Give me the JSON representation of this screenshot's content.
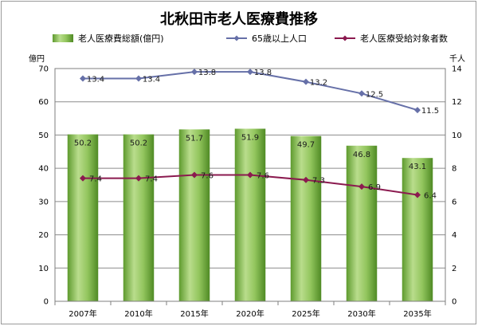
{
  "chart_data": {
    "type": "bar",
    "title": "北秋田市老人医療費推移",
    "categories": [
      "2007年",
      "2010年",
      "2015年",
      "2020年",
      "2025年",
      "2030年",
      "2035年"
    ],
    "y_left": {
      "unit": "億円",
      "min": 0,
      "max": 70,
      "step": 10
    },
    "y_right": {
      "unit": "千人",
      "min": 0,
      "max": 14,
      "step": 2
    },
    "grid": true,
    "legend_position": "top",
    "series": [
      {
        "name": "老人医療費総額(億円)",
        "kind": "bar",
        "axis": "left",
        "color": "#7ab648",
        "values": [
          50.2,
          50.2,
          51.7,
          51.9,
          49.7,
          46.8,
          43.1
        ]
      },
      {
        "name": "65歳以上人口",
        "kind": "line",
        "axis": "right",
        "color": "#6670a8",
        "marker": "diamond",
        "values": [
          13.4,
          13.4,
          13.8,
          13.8,
          13.2,
          12.5,
          11.5
        ]
      },
      {
        "name": "老人医療受給対象者数",
        "kind": "line",
        "axis": "right",
        "color": "#8b1a4f",
        "marker": "diamond",
        "values": [
          7.4,
          7.4,
          7.6,
          7.6,
          7.3,
          6.9,
          6.4
        ]
      }
    ]
  }
}
